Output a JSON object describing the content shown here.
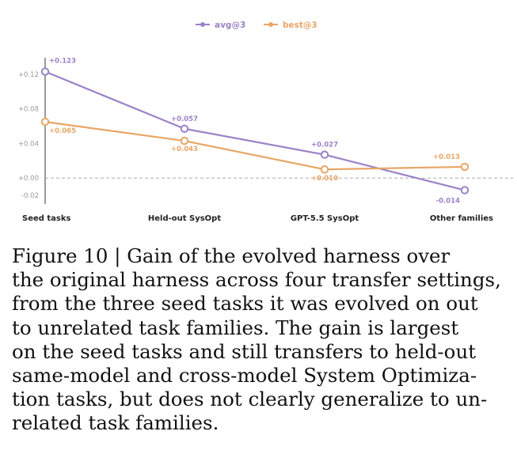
{
  "chart_data": {
    "type": "line",
    "categories": [
      "Seed tasks",
      "Held-out SysOpt",
      "GPT-5.5 SysOpt",
      "Other families"
    ],
    "series": [
      {
        "name": "avg@3",
        "color": "#9b82c8",
        "values": [
          0.123,
          0.057,
          0.027,
          -0.014
        ],
        "labels": [
          "+0.123",
          "+0.057",
          "+0.027",
          "-0.014"
        ]
      },
      {
        "name": "best@3",
        "color": "#e8a666",
        "values": [
          0.065,
          0.043,
          0.01,
          0.013
        ],
        "labels": [
          "+0.065",
          "+0.043",
          "+0.010",
          "+0.013"
        ]
      }
    ],
    "yticks": [
      0.12,
      0.08,
      0.04,
      0.0,
      -0.02
    ],
    "ytick_labels": [
      "+0.12",
      "+0.08",
      "+0.04",
      "+0.00",
      "-0.02"
    ],
    "ylim": [
      -0.03,
      0.139
    ],
    "zero_line": true,
    "grid": false,
    "legend": "top-center",
    "xlabel": "",
    "ylabel": ""
  },
  "caption": {
    "line1": "Figure 10 | Gain of the evolved harness over",
    "line2": "the original harness across four transfer settings,",
    "line3": "from the three seed tasks it was evolved on out",
    "line4": "to unrelated task families.  The gain is largest",
    "line5": "on the seed tasks and still transfers to held-out",
    "line6": "same-model and cross-model System Optimiza-",
    "line7": "tion tasks, but does not clearly generalize to un-",
    "line8": "related task families."
  }
}
